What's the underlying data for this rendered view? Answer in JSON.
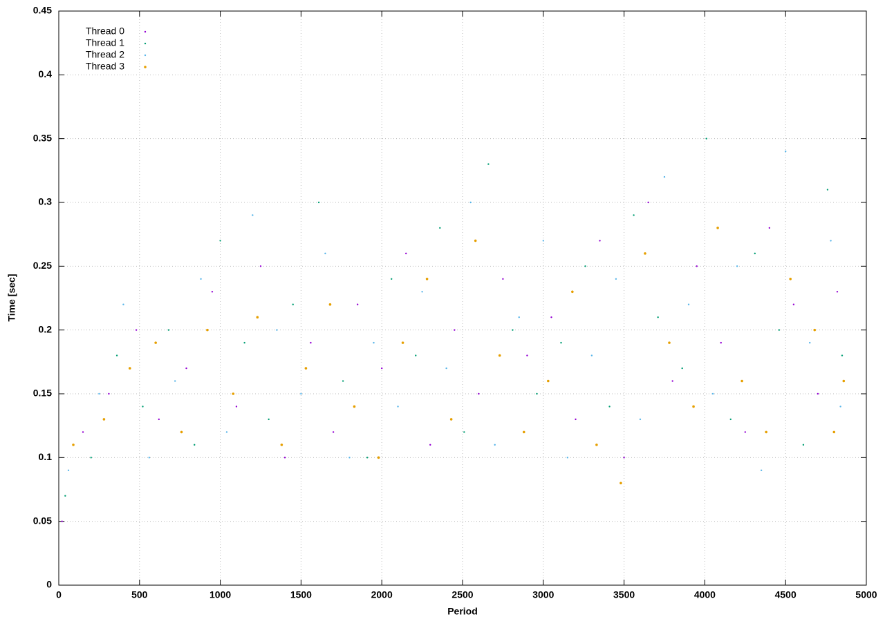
{
  "chart_data": {
    "type": "scatter",
    "xlabel": "Period",
    "ylabel": "Time [sec]",
    "xlim": [
      0,
      5000
    ],
    "xticks": [
      0,
      500,
      1000,
      1500,
      2000,
      2500,
      3000,
      3500,
      4000,
      4500,
      5000
    ],
    "ylim": [
      0,
      0.45
    ],
    "yticks": [
      0,
      0.05,
      0.1,
      0.15,
      0.2,
      0.25,
      0.3,
      0.35,
      0.4,
      0.45
    ],
    "grid": true,
    "legend": "top-left",
    "series": [
      {
        "name": "Thread 0",
        "color": "#9400d3",
        "x": [
          20,
          150,
          310,
          480,
          620,
          790,
          950,
          1100,
          1250,
          1400,
          1560,
          1700,
          1850,
          2000,
          2150,
          2300,
          2450,
          2600,
          2750,
          2900,
          3050,
          3200,
          3350,
          3500,
          3650,
          3800,
          3950,
          4100,
          4250,
          4400,
          4550,
          4700,
          4820
        ],
        "values": [
          0.05,
          0.12,
          0.15,
          0.2,
          0.13,
          0.17,
          0.23,
          0.14,
          0.25,
          0.1,
          0.19,
          0.12,
          0.22,
          0.17,
          0.26,
          0.11,
          0.2,
          0.15,
          0.24,
          0.18,
          0.21,
          0.13,
          0.27,
          0.1,
          0.3,
          0.16,
          0.25,
          0.19,
          0.12,
          0.28,
          0.22,
          0.15,
          0.23
        ]
      },
      {
        "name": "Thread 1",
        "color": "#009e73",
        "x": [
          40,
          200,
          360,
          520,
          680,
          840,
          1000,
          1150,
          1300,
          1450,
          1610,
          1760,
          1910,
          2060,
          2210,
          2360,
          2510,
          2660,
          2810,
          2960,
          3110,
          3260,
          3410,
          3560,
          3710,
          3860,
          4010,
          4160,
          4310,
          4460,
          4610,
          4760,
          4850
        ],
        "values": [
          0.07,
          0.1,
          0.18,
          0.14,
          0.2,
          0.11,
          0.27,
          0.19,
          0.13,
          0.22,
          0.3,
          0.16,
          0.1,
          0.24,
          0.18,
          0.28,
          0.12,
          0.33,
          0.2,
          0.15,
          0.19,
          0.25,
          0.14,
          0.29,
          0.21,
          0.17,
          0.35,
          0.13,
          0.26,
          0.2,
          0.11,
          0.31,
          0.18
        ]
      },
      {
        "name": "Thread 2",
        "color": "#56b4e9",
        "x": [
          60,
          250,
          400,
          560,
          720,
          880,
          1040,
          1200,
          1350,
          1500,
          1650,
          1800,
          1950,
          2100,
          2250,
          2400,
          2550,
          2700,
          2850,
          3000,
          3150,
          3300,
          3450,
          3600,
          3750,
          3900,
          4050,
          4200,
          4350,
          4500,
          4650,
          4780,
          4840
        ],
        "values": [
          0.09,
          0.15,
          0.22,
          0.1,
          0.16,
          0.24,
          0.12,
          0.29,
          0.2,
          0.15,
          0.26,
          0.1,
          0.19,
          0.14,
          0.23,
          0.17,
          0.3,
          0.11,
          0.21,
          0.27,
          0.1,
          0.18,
          0.24,
          0.13,
          0.32,
          0.22,
          0.15,
          0.25,
          0.09,
          0.34,
          0.19,
          0.27,
          0.14
        ]
      },
      {
        "name": "Thread 3",
        "color": "#e69f00",
        "x": [
          90,
          280,
          440,
          600,
          760,
          920,
          1080,
          1230,
          1380,
          1530,
          1680,
          1830,
          1980,
          2130,
          2280,
          2430,
          2580,
          2730,
          2880,
          3030,
          3180,
          3330,
          3480,
          3630,
          3780,
          3930,
          4080,
          4230,
          4380,
          4530,
          4680,
          4800,
          4860
        ],
        "values": [
          0.11,
          0.13,
          0.17,
          0.19,
          0.12,
          0.2,
          0.15,
          0.21,
          0.11,
          0.17,
          0.22,
          0.14,
          0.1,
          0.19,
          0.24,
          0.13,
          0.27,
          0.18,
          0.12,
          0.16,
          0.23,
          0.11,
          0.08,
          0.26,
          0.19,
          0.14,
          0.28,
          0.16,
          0.12,
          0.24,
          0.2,
          0.12,
          0.16
        ]
      }
    ]
  }
}
